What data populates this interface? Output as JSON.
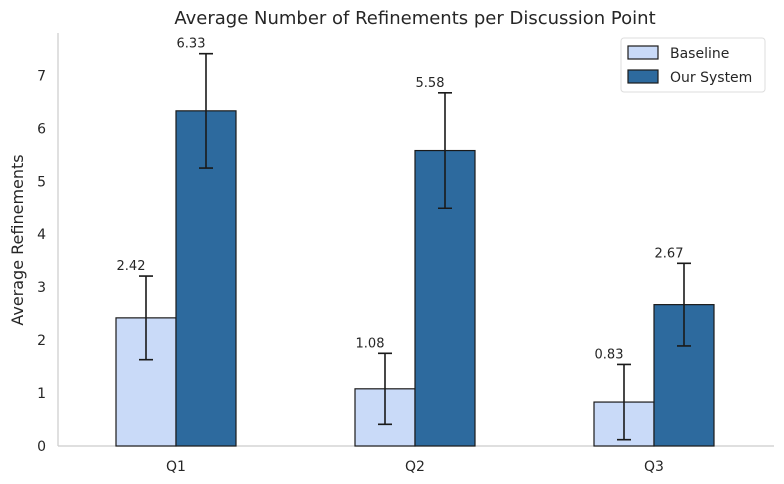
{
  "chart_data": {
    "type": "bar",
    "title": "Average Number of Refinements per Discussion Point",
    "xlabel": "",
    "ylabel": "Average Refinements",
    "categories": [
      "Q1",
      "Q2",
      "Q3"
    ],
    "ylim": [
      0,
      7.8
    ],
    "yticks": [
      0,
      1,
      2,
      3,
      4,
      5,
      6,
      7
    ],
    "grid": false,
    "legend_position": "top-right",
    "series": [
      {
        "name": "Baseline",
        "color": "#c9daf8",
        "values": [
          2.42,
          1.08,
          0.83
        ],
        "labels": [
          "2.42",
          "1.08",
          "0.83"
        ],
        "error": [
          0.79,
          0.67,
          0.71
        ]
      },
      {
        "name": "Our System",
        "color": "#2d6a9e",
        "values": [
          6.33,
          5.58,
          2.67
        ],
        "labels": [
          "6.33",
          "5.58",
          "2.67"
        ],
        "error": [
          1.08,
          1.09,
          0.78
        ]
      }
    ]
  }
}
